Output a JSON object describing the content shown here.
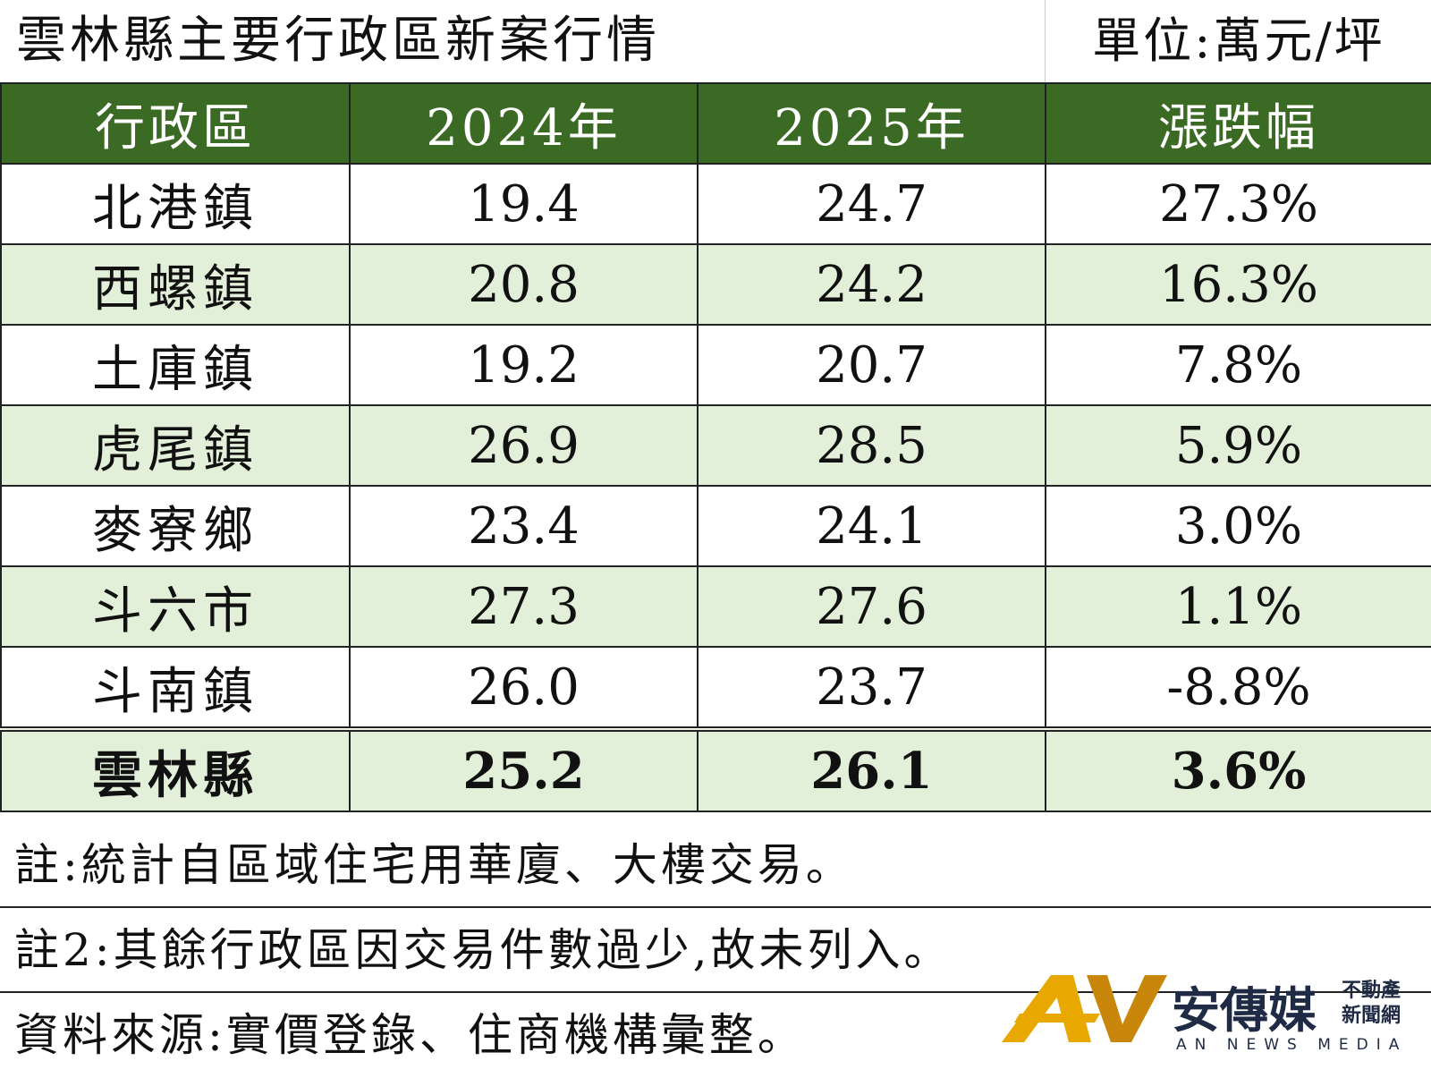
{
  "header": {
    "title": "雲林縣主要行政區新案行情",
    "unit": "單位:萬元/坪"
  },
  "table": {
    "columns": [
      "行政區",
      "2024年",
      "2025年",
      "漲跌幅"
    ],
    "rows": [
      [
        "北港鎮",
        "19.4",
        "24.7",
        "27.3%"
      ],
      [
        "西螺鎮",
        "20.8",
        "24.2",
        "16.3%"
      ],
      [
        "土庫鎮",
        "19.2",
        "20.7",
        "7.8%"
      ],
      [
        "虎尾鎮",
        "26.9",
        "28.5",
        "5.9%"
      ],
      [
        "麥寮鄉",
        "23.4",
        "24.1",
        "3.0%"
      ],
      [
        "斗六市",
        "27.3",
        "27.6",
        "1.1%"
      ],
      [
        "斗南鎮",
        "26.0",
        "23.7",
        "-8.8%"
      ]
    ],
    "total": [
      "雲林縣",
      "25.2",
      "26.1",
      "3.6%"
    ]
  },
  "notes": [
    "註:統計自區域住宅用華廈、大樓交易。",
    "註2:其餘行政區因交易件數過少,故未列入。",
    "資料來源:實價登錄、住商機構彙整。"
  ],
  "logo": {
    "brand": "安傳媒",
    "sub1": "不動產",
    "sub2": "新聞網",
    "english": "AN NEWS MEDIA"
  }
}
